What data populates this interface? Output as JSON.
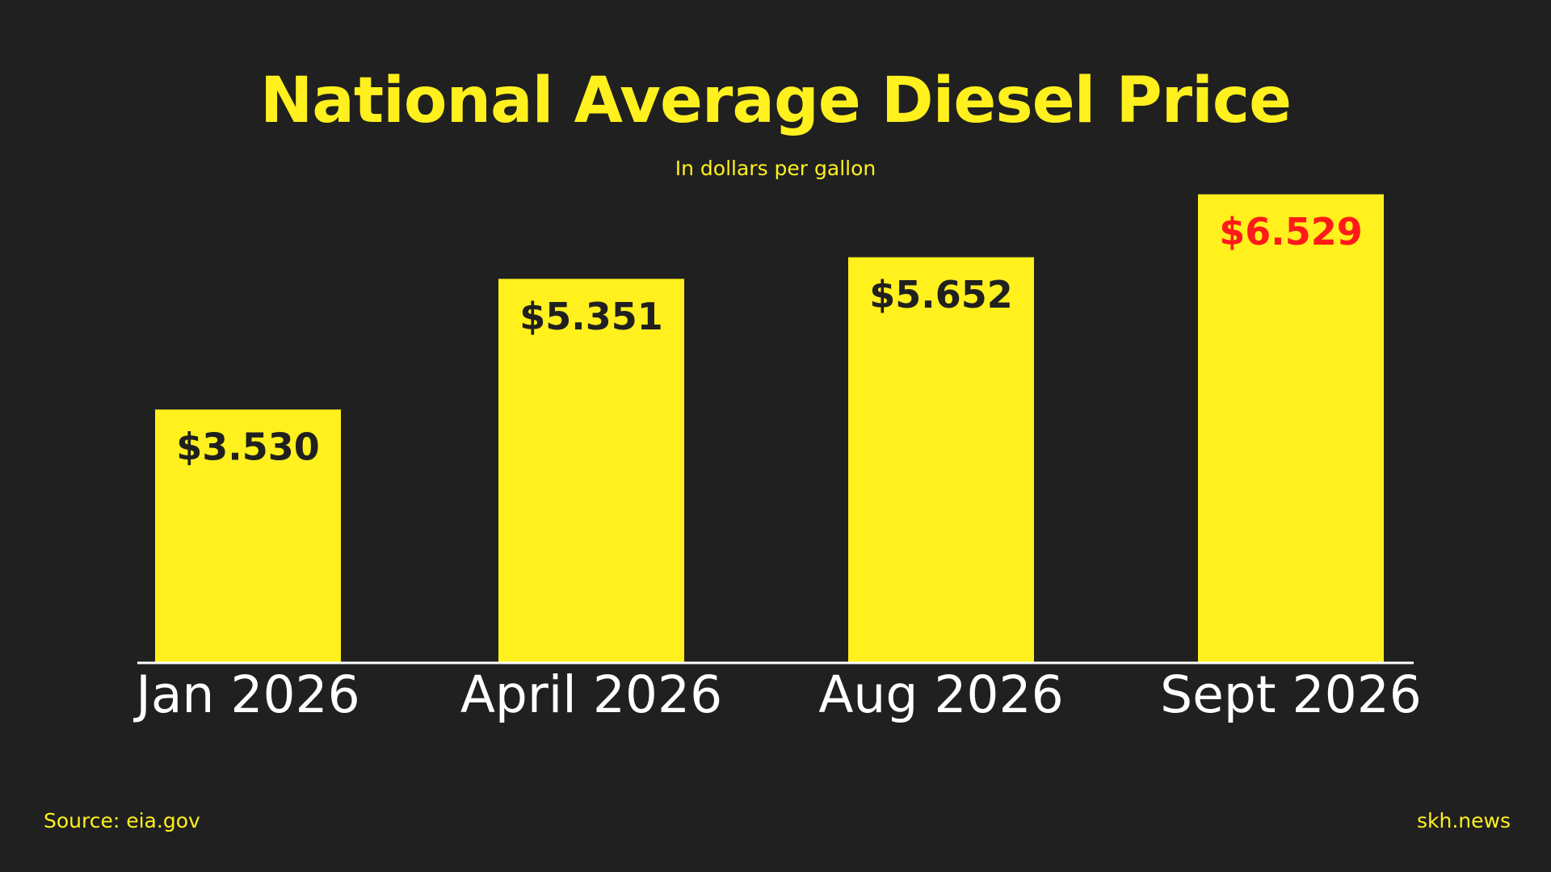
{
  "chart_data": {
    "type": "bar",
    "title": "National Average Diesel Price",
    "subtitle": "In dollars per gallon",
    "categories": [
      "Jan 2026",
      "April 2026",
      "Aug 2026",
      "Sept 2026"
    ],
    "values": [
      3.53,
      5.351,
      5.652,
      6.529
    ],
    "value_labels": [
      "$3.530",
      "$5.351",
      "$5.652",
      "$6.529"
    ],
    "ylim": [
      0,
      6.75
    ],
    "grid": false,
    "legend": "none",
    "colors": {
      "background": "#202020",
      "bar": "#fff01e",
      "label": "#202020",
      "highlight_label": "#ff1a1a",
      "axis": "#ffffff",
      "category_text": "#ffffff",
      "title": "#fff01e"
    },
    "highlight_index": 3
  },
  "footer": {
    "source": "Source: eia.gov",
    "brand": "skh.news"
  }
}
